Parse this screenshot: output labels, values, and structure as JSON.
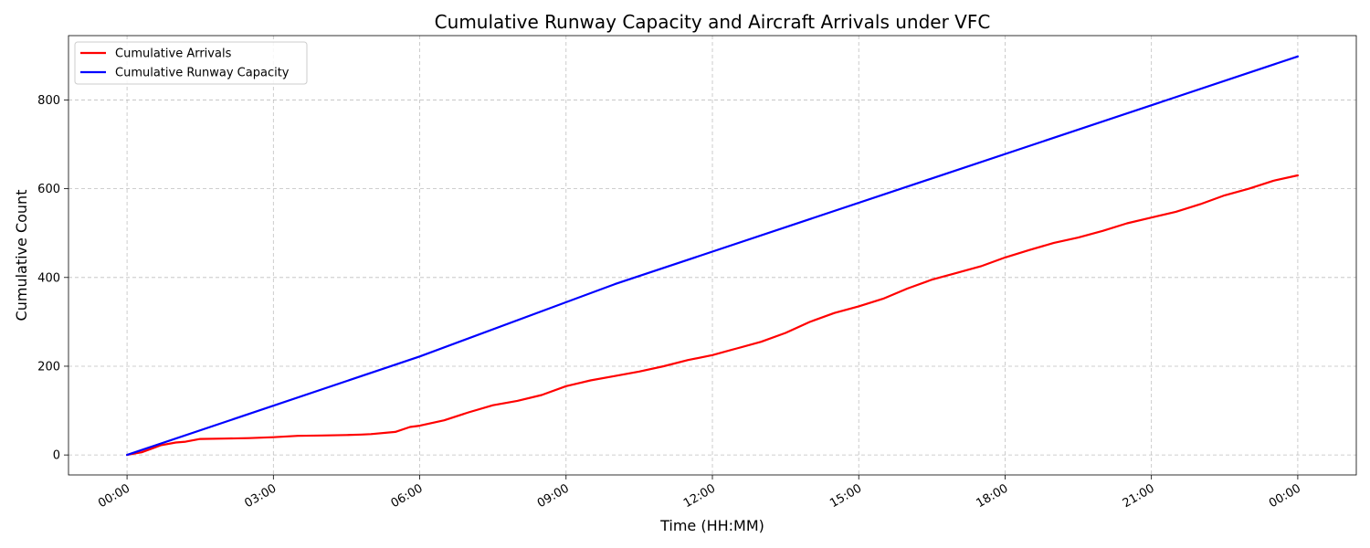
{
  "chart_data": {
    "type": "line",
    "title": "Cumulative Runway Capacity and Aircraft Arrivals under VFC",
    "xlabel": "Time (HH:MM)",
    "ylabel": "Cumulative Count",
    "x_ticks": [
      "00:00",
      "03:00",
      "06:00",
      "09:00",
      "12:00",
      "15:00",
      "18:00",
      "21:00",
      "00:00"
    ],
    "x_tick_hours": [
      0,
      3,
      6,
      9,
      12,
      15,
      18,
      21,
      24
    ],
    "y_ticks": [
      0,
      200,
      400,
      600,
      800
    ],
    "xlim_hours": [
      -1.2,
      25.2
    ],
    "ylim": [
      -45,
      945
    ],
    "grid": true,
    "legend_position": "upper-left",
    "series": [
      {
        "name": "Cumulative Arrivals",
        "color": "#ff0000",
        "hours": [
          0,
          0.3,
          0.5,
          0.7,
          1.0,
          1.2,
          1.5,
          2.0,
          2.5,
          3.0,
          3.5,
          4.0,
          4.5,
          4.8,
          5.0,
          5.5,
          5.8,
          6.0,
          6.5,
          7.0,
          7.5,
          8.0,
          8.5,
          9.0,
          9.5,
          10.0,
          10.5,
          11.0,
          11.5,
          12.0,
          12.5,
          13.0,
          13.5,
          14.0,
          14.5,
          15.0,
          15.5,
          16.0,
          16.5,
          17.0,
          17.5,
          18.0,
          18.5,
          19.0,
          19.5,
          20.0,
          20.5,
          21.0,
          21.5,
          22.0,
          22.5,
          23.0,
          23.5,
          24.0
        ],
        "values": [
          0,
          6,
          14,
          22,
          28,
          30,
          36,
          37,
          38,
          40,
          43,
          44,
          45,
          46,
          47,
          52,
          63,
          66,
          78,
          96,
          112,
          122,
          135,
          155,
          168,
          178,
          188,
          200,
          214,
          225,
          240,
          255,
          275,
          300,
          320,
          335,
          352,
          375,
          395,
          410,
          425,
          445,
          462,
          478,
          490,
          505,
          522,
          535,
          548,
          565,
          585,
          600,
          618,
          630
        ]
      },
      {
        "name": "Cumulative Runway Capacity",
        "color": "#0000ff",
        "hours": [
          0,
          6,
          10,
          24
        ],
        "values": [
          0,
          222,
          385,
          898
        ]
      }
    ]
  }
}
